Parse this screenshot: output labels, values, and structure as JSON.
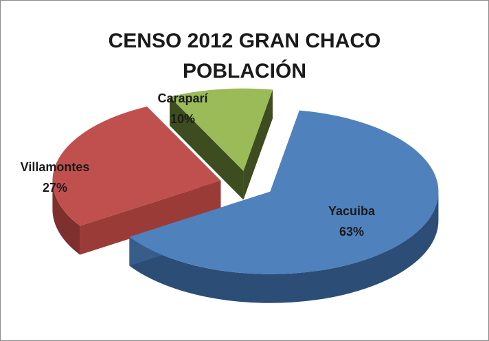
{
  "chart_data": {
    "type": "pie",
    "title_lines": [
      "CENSO 2012 GRAN CHACO",
      "POBLACIÓN"
    ],
    "slices": [
      {
        "label": "Yacuiba",
        "value": 63,
        "value_label": "63%",
        "color": "#4f81bd",
        "side_color": "#2c4d75",
        "dark_color": "#385d8a"
      },
      {
        "label": "Villamontes",
        "value": 27,
        "value_label": "27%",
        "color": "#c0504d",
        "side_color": "#7e302e",
        "dark_color": "#9b3b38"
      },
      {
        "label": "Caraparí",
        "value": 10,
        "value_label": "10%",
        "color": "#9bbb59",
        "side_color": "#4f6228",
        "dark_color": "#3e4d1f"
      }
    ],
    "exploded": true,
    "three_d": true
  }
}
